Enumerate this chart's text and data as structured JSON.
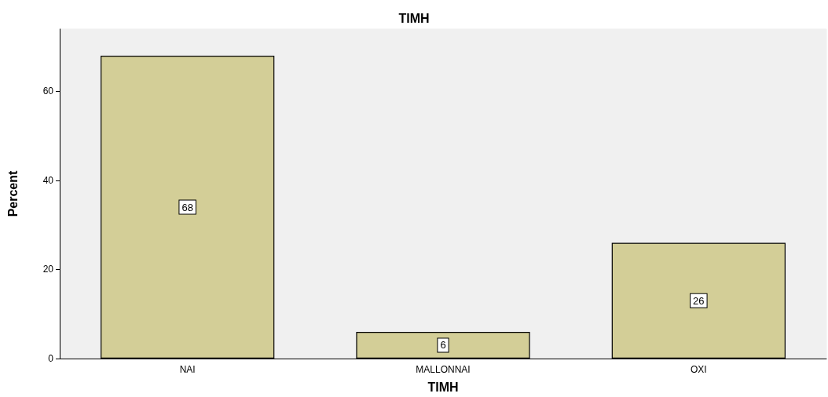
{
  "chart_data": {
    "type": "bar",
    "title": "TIMH",
    "xlabel": "TIMH",
    "ylabel": "Percent",
    "categories": [
      "NAI",
      "MALLONNAI",
      "OXI"
    ],
    "values": [
      68,
      6,
      26
    ],
    "color": "#d3ce97",
    "ylim": [
      0,
      74
    ],
    "yticks": [
      0,
      20,
      40,
      60
    ],
    "grid": false,
    "data_labels": true
  }
}
